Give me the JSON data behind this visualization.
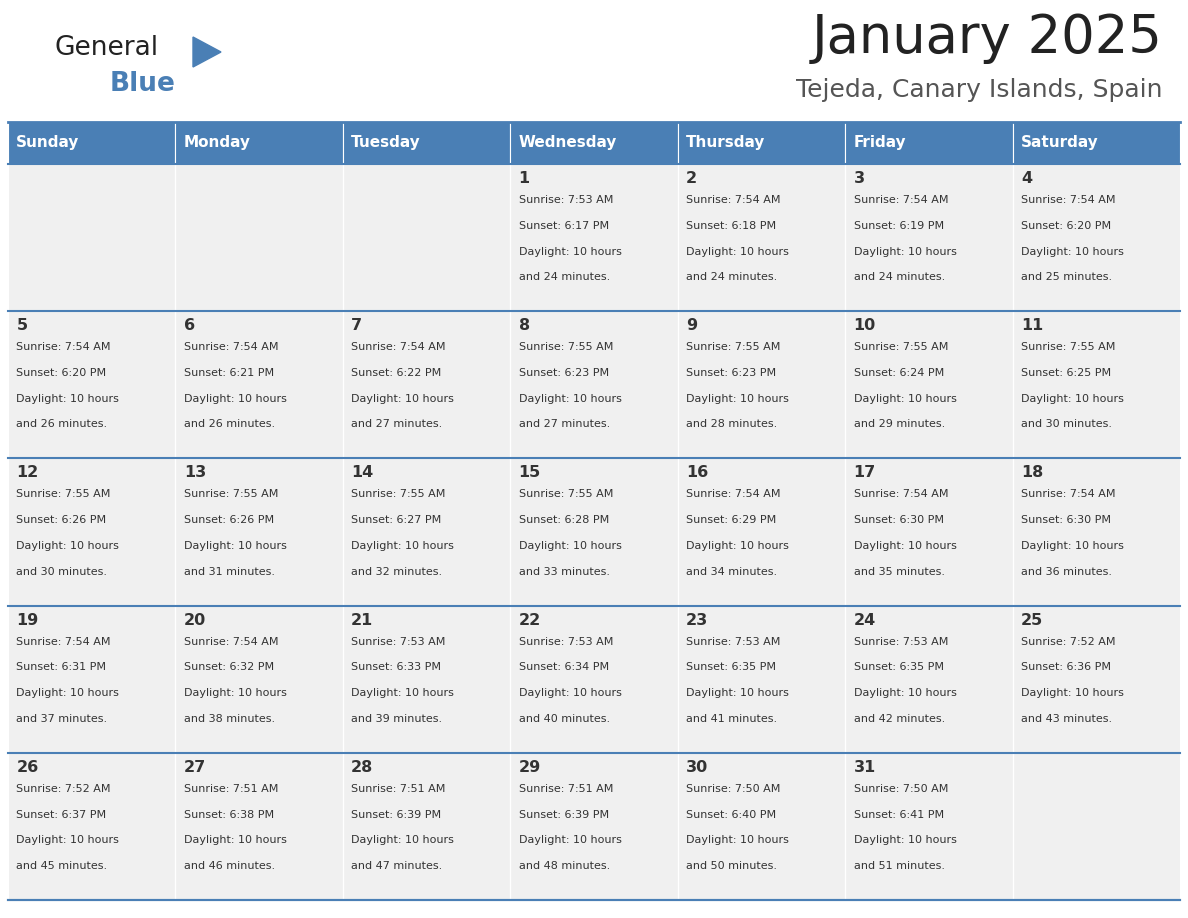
{
  "title": "January 2025",
  "subtitle": "Tejeda, Canary Islands, Spain",
  "header_color": "#4a7fb5",
  "header_text_color": "#ffffff",
  "cell_bg_color": "#f0f0f0",
  "border_color": "#4a7fb5",
  "day_names": [
    "Sunday",
    "Monday",
    "Tuesday",
    "Wednesday",
    "Thursday",
    "Friday",
    "Saturday"
  ],
  "days": [
    {
      "day": 1,
      "col": 3,
      "row": 0,
      "sunrise": "7:53 AM",
      "sunset": "6:17 PM",
      "daylight_h": "10 hours",
      "daylight_m": "24 minutes."
    },
    {
      "day": 2,
      "col": 4,
      "row": 0,
      "sunrise": "7:54 AM",
      "sunset": "6:18 PM",
      "daylight_h": "10 hours",
      "daylight_m": "24 minutes."
    },
    {
      "day": 3,
      "col": 5,
      "row": 0,
      "sunrise": "7:54 AM",
      "sunset": "6:19 PM",
      "daylight_h": "10 hours",
      "daylight_m": "24 minutes."
    },
    {
      "day": 4,
      "col": 6,
      "row": 0,
      "sunrise": "7:54 AM",
      "sunset": "6:20 PM",
      "daylight_h": "10 hours",
      "daylight_m": "25 minutes."
    },
    {
      "day": 5,
      "col": 0,
      "row": 1,
      "sunrise": "7:54 AM",
      "sunset": "6:20 PM",
      "daylight_h": "10 hours",
      "daylight_m": "26 minutes."
    },
    {
      "day": 6,
      "col": 1,
      "row": 1,
      "sunrise": "7:54 AM",
      "sunset": "6:21 PM",
      "daylight_h": "10 hours",
      "daylight_m": "26 minutes."
    },
    {
      "day": 7,
      "col": 2,
      "row": 1,
      "sunrise": "7:54 AM",
      "sunset": "6:22 PM",
      "daylight_h": "10 hours",
      "daylight_m": "27 minutes."
    },
    {
      "day": 8,
      "col": 3,
      "row": 1,
      "sunrise": "7:55 AM",
      "sunset": "6:23 PM",
      "daylight_h": "10 hours",
      "daylight_m": "27 minutes."
    },
    {
      "day": 9,
      "col": 4,
      "row": 1,
      "sunrise": "7:55 AM",
      "sunset": "6:23 PM",
      "daylight_h": "10 hours",
      "daylight_m": "28 minutes."
    },
    {
      "day": 10,
      "col": 5,
      "row": 1,
      "sunrise": "7:55 AM",
      "sunset": "6:24 PM",
      "daylight_h": "10 hours",
      "daylight_m": "29 minutes."
    },
    {
      "day": 11,
      "col": 6,
      "row": 1,
      "sunrise": "7:55 AM",
      "sunset": "6:25 PM",
      "daylight_h": "10 hours",
      "daylight_m": "30 minutes."
    },
    {
      "day": 12,
      "col": 0,
      "row": 2,
      "sunrise": "7:55 AM",
      "sunset": "6:26 PM",
      "daylight_h": "10 hours",
      "daylight_m": "30 minutes."
    },
    {
      "day": 13,
      "col": 1,
      "row": 2,
      "sunrise": "7:55 AM",
      "sunset": "6:26 PM",
      "daylight_h": "10 hours",
      "daylight_m": "31 minutes."
    },
    {
      "day": 14,
      "col": 2,
      "row": 2,
      "sunrise": "7:55 AM",
      "sunset": "6:27 PM",
      "daylight_h": "10 hours",
      "daylight_m": "32 minutes."
    },
    {
      "day": 15,
      "col": 3,
      "row": 2,
      "sunrise": "7:55 AM",
      "sunset": "6:28 PM",
      "daylight_h": "10 hours",
      "daylight_m": "33 minutes."
    },
    {
      "day": 16,
      "col": 4,
      "row": 2,
      "sunrise": "7:54 AM",
      "sunset": "6:29 PM",
      "daylight_h": "10 hours",
      "daylight_m": "34 minutes."
    },
    {
      "day": 17,
      "col": 5,
      "row": 2,
      "sunrise": "7:54 AM",
      "sunset": "6:30 PM",
      "daylight_h": "10 hours",
      "daylight_m": "35 minutes."
    },
    {
      "day": 18,
      "col": 6,
      "row": 2,
      "sunrise": "7:54 AM",
      "sunset": "6:30 PM",
      "daylight_h": "10 hours",
      "daylight_m": "36 minutes."
    },
    {
      "day": 19,
      "col": 0,
      "row": 3,
      "sunrise": "7:54 AM",
      "sunset": "6:31 PM",
      "daylight_h": "10 hours",
      "daylight_m": "37 minutes."
    },
    {
      "day": 20,
      "col": 1,
      "row": 3,
      "sunrise": "7:54 AM",
      "sunset": "6:32 PM",
      "daylight_h": "10 hours",
      "daylight_m": "38 minutes."
    },
    {
      "day": 21,
      "col": 2,
      "row": 3,
      "sunrise": "7:53 AM",
      "sunset": "6:33 PM",
      "daylight_h": "10 hours",
      "daylight_m": "39 minutes."
    },
    {
      "day": 22,
      "col": 3,
      "row": 3,
      "sunrise": "7:53 AM",
      "sunset": "6:34 PM",
      "daylight_h": "10 hours",
      "daylight_m": "40 minutes."
    },
    {
      "day": 23,
      "col": 4,
      "row": 3,
      "sunrise": "7:53 AM",
      "sunset": "6:35 PM",
      "daylight_h": "10 hours",
      "daylight_m": "41 minutes."
    },
    {
      "day": 24,
      "col": 5,
      "row": 3,
      "sunrise": "7:53 AM",
      "sunset": "6:35 PM",
      "daylight_h": "10 hours",
      "daylight_m": "42 minutes."
    },
    {
      "day": 25,
      "col": 6,
      "row": 3,
      "sunrise": "7:52 AM",
      "sunset": "6:36 PM",
      "daylight_h": "10 hours",
      "daylight_m": "43 minutes."
    },
    {
      "day": 26,
      "col": 0,
      "row": 4,
      "sunrise": "7:52 AM",
      "sunset": "6:37 PM",
      "daylight_h": "10 hours",
      "daylight_m": "45 minutes."
    },
    {
      "day": 27,
      "col": 1,
      "row": 4,
      "sunrise": "7:51 AM",
      "sunset": "6:38 PM",
      "daylight_h": "10 hours",
      "daylight_m": "46 minutes."
    },
    {
      "day": 28,
      "col": 2,
      "row": 4,
      "sunrise": "7:51 AM",
      "sunset": "6:39 PM",
      "daylight_h": "10 hours",
      "daylight_m": "47 minutes."
    },
    {
      "day": 29,
      "col": 3,
      "row": 4,
      "sunrise": "7:51 AM",
      "sunset": "6:39 PM",
      "daylight_h": "10 hours",
      "daylight_m": "48 minutes."
    },
    {
      "day": 30,
      "col": 4,
      "row": 4,
      "sunrise": "7:50 AM",
      "sunset": "6:40 PM",
      "daylight_h": "10 hours",
      "daylight_m": "50 minutes."
    },
    {
      "day": 31,
      "col": 5,
      "row": 4,
      "sunrise": "7:50 AM",
      "sunset": "6:41 PM",
      "daylight_h": "10 hours",
      "daylight_m": "51 minutes."
    }
  ],
  "num_rows": 5,
  "num_cols": 7,
  "logo_color_general": "#222222",
  "logo_color_blue": "#4a7fb5",
  "title_color": "#222222",
  "subtitle_color": "#555555",
  "text_color": "#333333"
}
